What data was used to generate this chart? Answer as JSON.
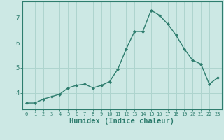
{
  "x": [
    0,
    1,
    2,
    3,
    4,
    5,
    6,
    7,
    8,
    9,
    10,
    11,
    12,
    13,
    14,
    15,
    16,
    17,
    18,
    19,
    20,
    21,
    22,
    23
  ],
  "y": [
    3.6,
    3.6,
    3.75,
    3.85,
    3.95,
    4.2,
    4.3,
    4.35,
    4.2,
    4.3,
    4.45,
    4.95,
    5.75,
    6.45,
    6.45,
    7.3,
    7.1,
    6.75,
    6.3,
    5.75,
    5.3,
    5.15,
    4.35,
    4.6
  ],
  "line_color": "#2e7d6e",
  "marker": "D",
  "marker_size": 2.0,
  "bg_color": "#cce8e4",
  "grid_color": "#aed4ce",
  "xlabel": "Humidex (Indice chaleur)",
  "xlabel_fontsize": 7.5,
  "yticks": [
    4,
    5,
    6,
    7
  ],
  "xtick_labels": [
    "0",
    "1",
    "2",
    "3",
    "4",
    "5",
    "6",
    "7",
    "8",
    "9",
    "10",
    "11",
    "12",
    "13",
    "14",
    "15",
    "16",
    "17",
    "18",
    "19",
    "20",
    "21",
    "22",
    "23"
  ],
  "xlim": [
    -0.5,
    23.5
  ],
  "ylim": [
    3.35,
    7.65
  ],
  "tick_color": "#2e7d6e",
  "axis_color": "#2e7d6e"
}
